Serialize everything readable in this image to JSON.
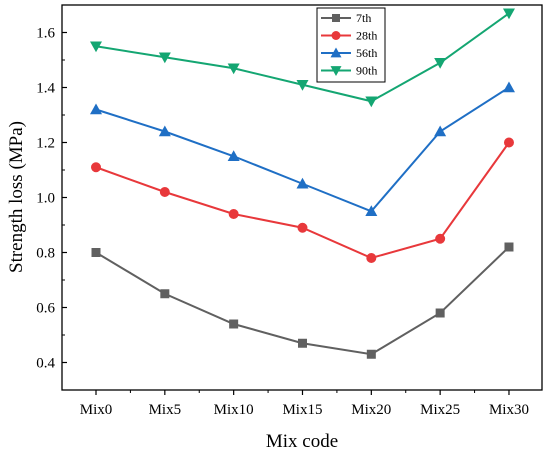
{
  "chart_data": {
    "type": "line",
    "title": "",
    "xlabel": "Mix code",
    "ylabel": "Strength loss (MPa)",
    "categories": [
      "Mix0",
      "Mix5",
      "Mix10",
      "Mix15",
      "Mix20",
      "Mix25",
      "Mix30"
    ],
    "ylim": [
      0.3,
      1.7
    ],
    "yticks": [
      0.4,
      0.6,
      0.8,
      1.0,
      1.2,
      1.4,
      1.6
    ],
    "ytick_labels": [
      "0.4",
      "0.6",
      "0.8",
      "1.0",
      "1.2",
      "1.4",
      "1.6"
    ],
    "grid": false,
    "legend_position": "top-center",
    "series": [
      {
        "name": "7th",
        "color": "#606060",
        "marker": "square",
        "values": [
          0.8,
          0.65,
          0.54,
          0.47,
          0.43,
          0.58,
          0.82
        ]
      },
      {
        "name": "28th",
        "color": "#e8383b",
        "marker": "circle",
        "values": [
          1.11,
          1.02,
          0.94,
          0.89,
          0.78,
          0.85,
          1.2
        ]
      },
      {
        "name": "56th",
        "color": "#1f6fc5",
        "marker": "triangle-up",
        "values": [
          1.32,
          1.24,
          1.15,
          1.05,
          0.95,
          1.24,
          1.4
        ]
      },
      {
        "name": "90th",
        "color": "#14a672",
        "marker": "triangle-down",
        "values": [
          1.55,
          1.51,
          1.47,
          1.41,
          1.35,
          1.49,
          1.67
        ]
      }
    ]
  }
}
